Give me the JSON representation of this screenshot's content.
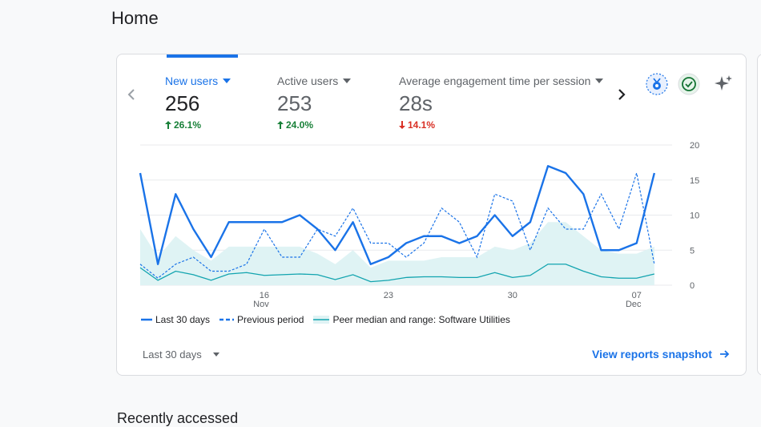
{
  "page": {
    "title": "Home"
  },
  "metrics": [
    {
      "label": "New users",
      "value": "256",
      "change": "26.1%",
      "direction": "up"
    },
    {
      "label": "Active users",
      "value": "253",
      "change": "24.0%",
      "direction": "up"
    },
    {
      "label": "Average engagement time per session",
      "value": "28s",
      "change": "14.1%",
      "direction": "down"
    }
  ],
  "icons": {
    "insights": "medal-icon",
    "status": "check-circle-icon",
    "ai": "sparkle-icon"
  },
  "colors": {
    "accent": "#1a73e8",
    "up": "#188038",
    "down": "#d93025",
    "peer": "#12a4af",
    "peer_fill": "#dff3f4"
  },
  "chart_data": {
    "type": "line",
    "x": [
      "Nov 9",
      "Nov 10",
      "Nov 11",
      "Nov 12",
      "Nov 13",
      "Nov 14",
      "Nov 15",
      "Nov 16",
      "Nov 17",
      "Nov 18",
      "Nov 19",
      "Nov 20",
      "Nov 21",
      "Nov 22",
      "Nov 23",
      "Nov 24",
      "Nov 25",
      "Nov 26",
      "Nov 27",
      "Nov 28",
      "Nov 29",
      "Nov 30",
      "Dec 1",
      "Dec 2",
      "Dec 3",
      "Dec 4",
      "Dec 5",
      "Dec 6",
      "Dec 7",
      "Dec 8",
      "Dec 9"
    ],
    "x_tick_labels": [
      "16",
      "23",
      "30",
      "07"
    ],
    "x_tick_sublabels": [
      "Nov",
      "",
      "",
      "Dec"
    ],
    "y_ticks": [
      "0",
      "5",
      "10",
      "15",
      "20"
    ],
    "ylim": [
      0,
      20
    ],
    "series": [
      {
        "name": "Last 30 days",
        "style": "solid",
        "color": "#1a73e8",
        "values": [
          16,
          3,
          13,
          8,
          4,
          9,
          9,
          9,
          9,
          10,
          8,
          5,
          9,
          3,
          4,
          6,
          7,
          7,
          6,
          7,
          10,
          7,
          9,
          17,
          16,
          13,
          5,
          5,
          6,
          16,
          null
        ]
      },
      {
        "name": "Previous period",
        "style": "dashed",
        "color": "#1a73e8",
        "values": [
          3,
          1,
          3,
          4,
          2,
          2,
          3,
          8,
          4,
          4,
          8,
          7,
          11,
          6,
          6,
          4,
          6,
          11,
          9,
          4,
          13,
          12,
          5,
          11,
          8,
          8,
          13,
          8,
          16,
          3,
          null
        ]
      },
      {
        "name": "Peer median and range: Software Utilities",
        "style": "band",
        "color": "#12a4af",
        "values": [
          2.5,
          0.7,
          2,
          1.5,
          0.7,
          1.6,
          1.8,
          1.4,
          1.5,
          1.6,
          1.5,
          0.8,
          1.5,
          0.5,
          0.7,
          1.1,
          1.2,
          1.2,
          1.1,
          1.1,
          1.8,
          1.1,
          1.4,
          3,
          3,
          2,
          1.2,
          1,
          1,
          1.6,
          null
        ],
        "upper": [
          8,
          4,
          7,
          5,
          3.5,
          5.5,
          5.5,
          5.5,
          5.5,
          5.5,
          4.5,
          3,
          5,
          2.5,
          3.5,
          3.5,
          3.5,
          4,
          4,
          4,
          5.5,
          5,
          6,
          9,
          9,
          7,
          5,
          4.5,
          4.5,
          5.5,
          null
        ]
      }
    ]
  },
  "legend": [
    {
      "label": "Last 30 days"
    },
    {
      "label": "Previous period"
    },
    {
      "label": "Peer median and range: Software Utilities"
    }
  ],
  "footer": {
    "date_range": "Last 30 days",
    "link": "View reports snapshot"
  },
  "recent": {
    "title": "Recently accessed"
  }
}
